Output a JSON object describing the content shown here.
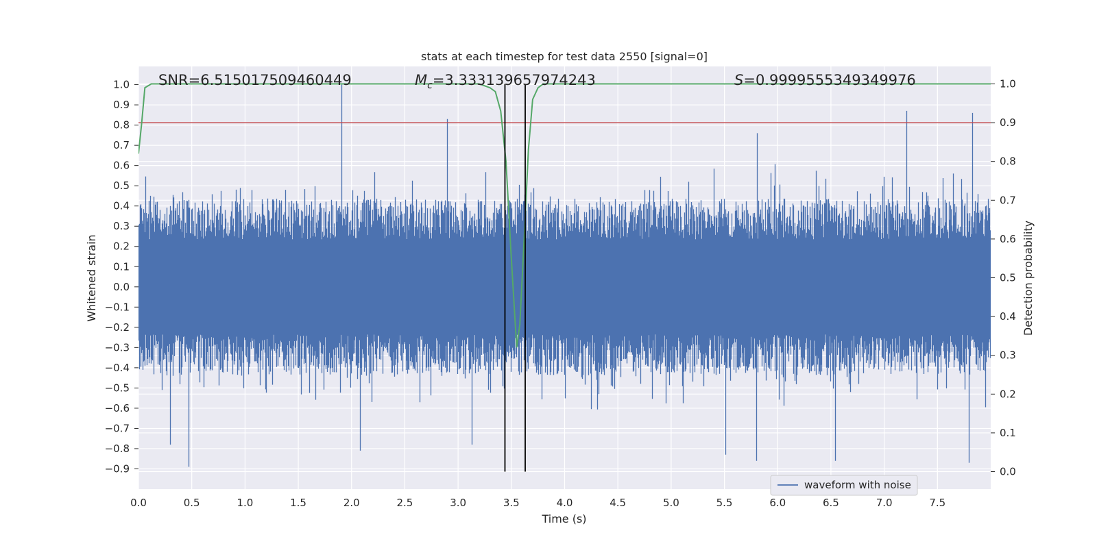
{
  "chart_data": {
    "type": "line",
    "title": "stats at each timestep for test data 2550 [signal=0]",
    "xlabel": "Time (s)",
    "ylabel": "Whitened strain",
    "ylabel_right": "Detection probability",
    "xlim": [
      0.0,
      8.0
    ],
    "ylim": [
      -1.0,
      1.09
    ],
    "ylim_right": [
      -0.045,
      1.045
    ],
    "x_ticks": [
      0.0,
      0.5,
      1.0,
      1.5,
      2.0,
      2.5,
      3.0,
      3.5,
      4.0,
      4.5,
      5.0,
      5.5,
      6.0,
      6.5,
      7.0,
      7.5
    ],
    "x_tick_labels": [
      "0.0",
      "0.5",
      "1.0",
      "1.5",
      "2.0",
      "2.5",
      "3.0",
      "3.5",
      "4.0",
      "4.5",
      "5.0",
      "5.5",
      "6.0",
      "6.5",
      "7.0",
      "7.5"
    ],
    "y_ticks": [
      -0.9,
      -0.8,
      -0.7,
      -0.6,
      -0.5,
      -0.4,
      -0.3,
      -0.2,
      -0.1,
      0.0,
      0.1,
      0.2,
      0.3,
      0.4,
      0.5,
      0.6,
      0.7,
      0.8,
      0.9,
      1.0
    ],
    "y_tick_labels": [
      "−0.9",
      "−0.8",
      "−0.7",
      "−0.6",
      "−0.5",
      "−0.4",
      "−0.3",
      "−0.2",
      "−0.1",
      "0.0",
      "0.1",
      "0.2",
      "0.3",
      "0.4",
      "0.5",
      "0.6",
      "0.7",
      "0.8",
      "0.9",
      "1.0"
    ],
    "y_right_ticks": [
      0.0,
      0.1,
      0.2,
      0.3,
      0.4,
      0.5,
      0.6,
      0.7,
      0.8,
      0.9,
      1.0
    ],
    "y_right_tick_labels": [
      "0.0",
      "0.1",
      "0.2",
      "0.3",
      "0.4",
      "0.5",
      "0.6",
      "0.7",
      "0.8",
      "0.9",
      "1.0"
    ],
    "grid": true,
    "stats": {
      "snr_label": "SNR=6.515017509460449",
      "mc_symbol": "M",
      "mc_subscript": "c",
      "mc_value": "=3.333139657974243",
      "s_symbol": "S",
      "s_value": "=0.9999555349349976"
    },
    "threshold": {
      "axis": "right",
      "value": 0.9,
      "color": "#c44e52"
    },
    "vlines": {
      "x": [
        3.44,
        3.63
      ],
      "color": "#000000"
    },
    "waveform": {
      "name": "waveform with noise",
      "color": "#4c72b0",
      "sample_rate": 4096,
      "duration": 8.0,
      "envelope_peak": 0.56,
      "peaks": [
        {
          "x": 1.91,
          "y": 1.0
        },
        {
          "x": 2.9,
          "y": 0.83
        },
        {
          "x": 7.21,
          "y": 0.87
        },
        {
          "x": 7.83,
          "y": 0.86
        },
        {
          "x": 5.81,
          "y": 0.76
        },
        {
          "x": 0.47,
          "y": -0.89
        },
        {
          "x": 5.8,
          "y": -0.86
        },
        {
          "x": 6.54,
          "y": -0.86
        },
        {
          "x": 7.8,
          "y": -0.87
        },
        {
          "x": 5.51,
          "y": -0.83
        },
        {
          "x": 2.08,
          "y": -0.81
        },
        {
          "x": 0.3,
          "y": -0.78
        },
        {
          "x": 3.13,
          "y": -0.78
        }
      ]
    },
    "detection_probability": {
      "color": "#55a868",
      "x": [
        0.0,
        0.03,
        0.06,
        0.12,
        0.2,
        3.2,
        3.3,
        3.35,
        3.4,
        3.45,
        3.5,
        3.55,
        3.58,
        3.62,
        3.66,
        3.7,
        3.75,
        3.8,
        3.9,
        8.0
      ],
      "y": [
        0.82,
        0.9,
        0.99,
        1.0,
        1.0,
        1.0,
        0.99,
        0.98,
        0.93,
        0.8,
        0.55,
        0.32,
        0.38,
        0.6,
        0.83,
        0.96,
        0.99,
        1.0,
        1.0,
        1.0
      ]
    },
    "legend": {
      "placement": "lower-right",
      "entries": [
        "waveform with noise"
      ]
    }
  }
}
